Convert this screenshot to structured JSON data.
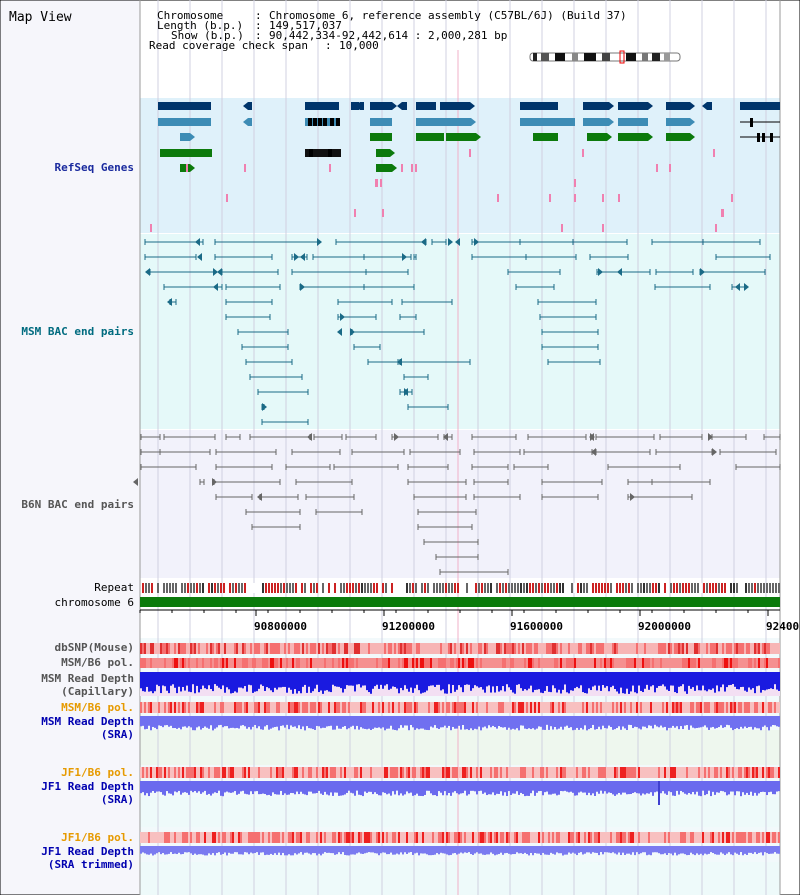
{
  "title": "Map View",
  "header": {
    "chromosome_key": "Chromosome",
    "chromosome_val": "Chromosome 6, reference assembly (C57BL/6J) (Build 37)",
    "length_key": "Length (b.p.)",
    "length_val": "149,517,037",
    "show_key": "Show (b.p.)",
    "show_val": "90,442,334-92,442,614 : 2,000,281 bp",
    "coverage_key": "Read coverage check span",
    "coverage_val": "10,000"
  },
  "tracks": {
    "refseq": "RefSeq Genes",
    "msm_bac": "MSM BAC end pairs",
    "b6n_bac": "B6N BAC end pairs",
    "repeat": "Repeat",
    "chromosome": "chromosome 6",
    "dbsnp": "dbSNP(Mouse)",
    "msm_pol": "MSM/B6 pol.",
    "msm_depth_cap_1": "MSM Read Depth",
    "msm_depth_cap_2": "(Capillary)",
    "msm_pol_2": "MSM/B6 pol.",
    "msm_depth_sra_1": "MSM Read Depth",
    "msm_depth_sra_2": "(SRA)",
    "jf1_pol": "JF1/B6 pol.",
    "jf1_depth_sra_1": "JF1 Read Depth",
    "jf1_depth_sra_2": "(SRA)",
    "jf1_pol_2": "JF1/B6 pol.",
    "jf1_depth_trim_1": "JF1 Read Depth",
    "jf1_depth_trim_2": "(SRA trimmed)"
  },
  "axis": {
    "ticks": [
      "90800000",
      "91200000",
      "91600000",
      "92000000",
      "92400"
    ]
  },
  "colors": {
    "refseq_bg": "#dff1fa",
    "msm_bg": "#e5f9f9",
    "b6n_bg": "#f2f2fb",
    "label_refseq": "#1a2a9e",
    "label_msm": "#006b7f",
    "label_b6n": "#555555",
    "label_orange": "#e69a00",
    "label_blue": "#0000b0",
    "chromosome_green": "#0b7a0b",
    "dark_navy": "#00356b",
    "mid_blue": "#3d8cb5",
    "gene_green": "#0c7a0c"
  }
}
